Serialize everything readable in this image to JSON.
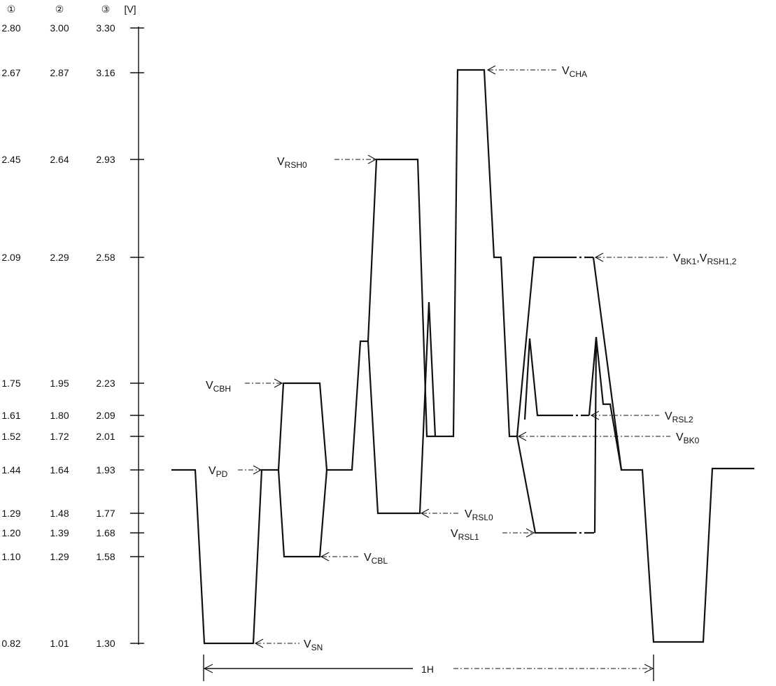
{
  "header": {
    "col1": "①",
    "col2": "②",
    "col3": "③",
    "unit": "[V]"
  },
  "voltage_rows": [
    [
      "2.80",
      "3.00",
      "3.30"
    ],
    [
      "2.67",
      "2.87",
      "3.16"
    ],
    [
      "2.45",
      "2.64",
      "2.93"
    ],
    [
      "2.09",
      "2.29",
      "2.58"
    ],
    [
      "1.75",
      "1.95",
      "2.23"
    ],
    [
      "1.61",
      "1.80",
      "2.09"
    ],
    [
      "1.52",
      "1.72",
      "2.01"
    ],
    [
      "1.44",
      "1.64",
      "1.93"
    ],
    [
      "1.29",
      "1.48",
      "1.77"
    ],
    [
      "1.20",
      "1.39",
      "1.68"
    ],
    [
      "1.10",
      "1.29",
      "1.58"
    ],
    [
      "0.82",
      "1.01",
      "1.30"
    ]
  ],
  "labels": {
    "cha": {
      "main": "V",
      "sub": "CHA",
      "tail": ""
    },
    "rsh0": {
      "main": "V",
      "sub": "RSH0",
      "tail": ""
    },
    "bk1": {
      "main": "V",
      "sub": "BK1",
      "tail": ",V",
      "sub2": "RSH1,2"
    },
    "cbh": {
      "main": "V",
      "sub": "CBH",
      "tail": ""
    },
    "rsl2": {
      "main": "V",
      "sub": "RSL2",
      "tail": ""
    },
    "bk0": {
      "main": "V",
      "sub": "BK0",
      "tail": ""
    },
    "pd": {
      "main": "V",
      "sub": "PD",
      "tail": ""
    },
    "rsl0": {
      "main": "V",
      "sub": "RSL0",
      "tail": ""
    },
    "rsl1": {
      "main": "V",
      "sub": "RSL1",
      "tail": ""
    },
    "cbl": {
      "main": "V",
      "sub": "CBL",
      "tail": ""
    },
    "sn": {
      "main": "V",
      "sub": "SN",
      "tail": ""
    }
  },
  "period_label": "1H"
}
